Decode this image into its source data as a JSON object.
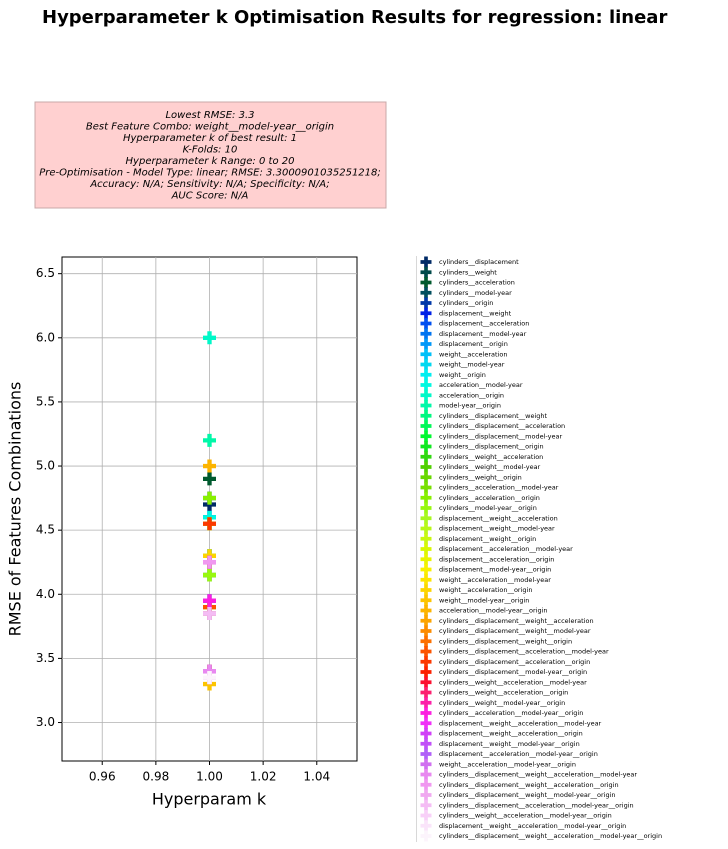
{
  "chart_data": {
    "type": "scatter",
    "title": "Hyperparameter k Optimisation Results for regression: linear",
    "annotation": [
      "Lowest RMSE: 3.3",
      "Best Feature Combo: weight__model-year__origin",
      "Hyperparameter k of best result: 1",
      "K-Folds: 10",
      "Hyperparameter k Range: 0 to 20",
      "Pre-Optimisation - Model Type: linear; RMSE: 3.3000901035251218;",
      "Accuracy: N/A; Sensitivity: N/A; Specificity: N/A;",
      "AUC Score: N/A"
    ],
    "x_label": "Hyperparam k",
    "y_label": "RMSE of Features Combinations",
    "xlim": [
      0.945,
      1.055
    ],
    "xticks": [
      0.96,
      0.98,
      {
        "value": 1,
        "label": "1.00"
      },
      1.02,
      1.04
    ],
    "ylim": [
      2.7,
      6.63
    ],
    "yticks": [
      {
        "value": 3,
        "label": "3.0"
      },
      3.5,
      {
        "value": 4,
        "label": "4.0"
      },
      4.5,
      {
        "value": 5,
        "label": "5.0"
      },
      5.5,
      {
        "value": 6,
        "label": "6.0"
      },
      6.5
    ],
    "grid": true,
    "legend": "right",
    "x": [
      1
    ],
    "series": [
      {
        "name": "cylinders__displacement",
        "color": "#002a66",
        "values": [
          4.7
        ]
      },
      {
        "name": "cylinders__weight",
        "color": "#004a4a",
        "values": [
          4.3
        ]
      },
      {
        "name": "cylinders__acceleration",
        "color": "#005a2e",
        "values": [
          4.9
        ]
      },
      {
        "name": "cylinders__model-year",
        "color": "#004e5e",
        "values": [
          4.15
        ]
      },
      {
        "name": "cylinders__origin",
        "color": "#0038a8",
        "values": [
          4.75
        ]
      },
      {
        "name": "displacement__weight",
        "color": "#0022e6",
        "values": [
          4.3
        ]
      },
      {
        "name": "displacement__acceleration",
        "color": "#0050f0",
        "values": [
          4.6
        ]
      },
      {
        "name": "displacement__model-year",
        "color": "#0074f0",
        "values": [
          3.95
        ]
      },
      {
        "name": "displacement__origin",
        "color": "#0098f8",
        "values": [
          4.6
        ]
      },
      {
        "name": "weight__acceleration",
        "color": "#00c0f8",
        "values": [
          4.3
        ]
      },
      {
        "name": "weight__model-year",
        "color": "#00d8f0",
        "values": [
          3.4
        ]
      },
      {
        "name": "weight__origin",
        "color": "#00eef0",
        "values": [
          4.3
        ]
      },
      {
        "name": "acceleration__model-year",
        "color": "#00f8e0",
        "values": [
          4.6
        ]
      },
      {
        "name": "acceleration__origin",
        "color": "#00f8c8",
        "values": [
          6.0
        ]
      },
      {
        "name": "model-year__origin",
        "color": "#00f8a8",
        "values": [
          5.2
        ]
      },
      {
        "name": "cylinders__displacement__weight",
        "color": "#00f880",
        "values": [
          4.25
        ]
      },
      {
        "name": "cylinders__displacement__acceleration",
        "color": "#00f858",
        "values": [
          4.55
        ]
      },
      {
        "name": "cylinders__displacement__model-year",
        "color": "#00f830",
        "values": [
          3.9
        ]
      },
      {
        "name": "cylinders__displacement__origin",
        "color": "#10e820",
        "values": [
          4.55
        ]
      },
      {
        "name": "cylinders__weight__acceleration",
        "color": "#30d810",
        "values": [
          4.25
        ]
      },
      {
        "name": "cylinders__weight__model-year",
        "color": "#50d000",
        "values": [
          3.4
        ]
      },
      {
        "name": "cylinders__weight__origin",
        "color": "#68d800",
        "values": [
          4.25
        ]
      },
      {
        "name": "cylinders__acceleration__model-year",
        "color": "#78e000",
        "values": [
          4.15
        ]
      },
      {
        "name": "cylinders__acceleration__origin",
        "color": "#88f000",
        "values": [
          4.75
        ]
      },
      {
        "name": "cylinders__model-year__origin",
        "color": "#98f810",
        "values": [
          4.15
        ]
      },
      {
        "name": "displacement__weight__acceleration",
        "color": "#a8f820",
        "values": [
          4.25
        ]
      },
      {
        "name": "displacement__weight__model-year",
        "color": "#b8f818",
        "values": [
          3.4
        ]
      },
      {
        "name": "displacement__weight__origin",
        "color": "#c8f810",
        "values": [
          4.3
        ]
      },
      {
        "name": "displacement__acceleration__model-year",
        "color": "#d8f800",
        "values": [
          3.9
        ]
      },
      {
        "name": "displacement__acceleration__origin",
        "color": "#e8f400",
        "values": [
          4.55
        ]
      },
      {
        "name": "displacement__model-year__origin",
        "color": "#f8f000",
        "values": [
          3.9
        ]
      },
      {
        "name": "weight__acceleration__model-year",
        "color": "#fce400",
        "values": [
          3.4
        ]
      },
      {
        "name": "weight__acceleration__origin",
        "color": "#fcd400",
        "values": [
          4.3
        ]
      },
      {
        "name": "weight__model-year__origin",
        "color": "#fcc400",
        "values": [
          3.3
        ]
      },
      {
        "name": "acceleration__model-year__origin",
        "color": "#fcb400",
        "values": [
          5.0
        ]
      },
      {
        "name": "cylinders__displacement__weight__acceleration",
        "color": "#fca400",
        "values": [
          4.25
        ]
      },
      {
        "name": "cylinders__displacement__weight__model-year",
        "color": "#fc8c00",
        "values": [
          3.4
        ]
      },
      {
        "name": "cylinders__displacement__weight__origin",
        "color": "#fc7000",
        "values": [
          4.25
        ]
      },
      {
        "name": "cylinders__displacement__acceleration__model-year",
        "color": "#fc5400",
        "values": [
          3.9
        ]
      },
      {
        "name": "cylinders__displacement__acceleration__origin",
        "color": "#fc3800",
        "values": [
          4.55
        ]
      },
      {
        "name": "cylinders__displacement__model-year__origin",
        "color": "#fc2000",
        "values": [
          3.85
        ]
      },
      {
        "name": "cylinders__weight__acceleration__model-year",
        "color": "#fc1030",
        "values": [
          3.4
        ]
      },
      {
        "name": "cylinders__weight__acceleration__origin",
        "color": "#fc2070",
        "values": [
          4.25
        ]
      },
      {
        "name": "cylinders__weight__model-year__origin",
        "color": "#fc20a8",
        "values": [
          3.35
        ]
      },
      {
        "name": "cylinders__acceleration__model-year__origin",
        "color": "#fc20e0",
        "values": [
          3.95
        ]
      },
      {
        "name": "displacement__weight__acceleration__model-year",
        "color": "#f030f8",
        "values": [
          3.4
        ]
      },
      {
        "name": "displacement__weight__acceleration__origin",
        "color": "#d040f8",
        "values": [
          4.25
        ]
      },
      {
        "name": "displacement__weight__model-year__origin",
        "color": "#c050f8",
        "values": [
          3.35
        ]
      },
      {
        "name": "displacement__acceleration__model-year__origin",
        "color": "#b060f8",
        "values": [
          3.85
        ]
      },
      {
        "name": "weight__acceleration__model-year__origin",
        "color": "#d070f0",
        "values": [
          3.4
        ]
      },
      {
        "name": "cylinders__displacement__weight__acceleration__model-year",
        "color": "#e888f0",
        "values": [
          3.4
        ]
      },
      {
        "name": "cylinders__displacement__weight__acceleration__origin",
        "color": "#f098f0",
        "values": [
          4.25
        ]
      },
      {
        "name": "cylinders__displacement__weight__model-year__origin",
        "color": "#f0a8f0",
        "values": [
          3.35
        ]
      },
      {
        "name": "cylinders__displacement__acceleration__model-year__origin",
        "color": "#f4bcf4",
        "values": [
          3.85
        ]
      },
      {
        "name": "cylinders__weight__acceleration__model-year__origin",
        "color": "#f8d0f8",
        "values": [
          3.35
        ]
      },
      {
        "name": "displacement__weight__acceleration__model-year__origin",
        "color": "#fae4fa",
        "values": [
          3.35
        ]
      },
      {
        "name": "cylinders__displacement__weight__acceleration__model-year__origin",
        "color": "#fcf4fc",
        "values": [
          3.35
        ]
      }
    ]
  }
}
